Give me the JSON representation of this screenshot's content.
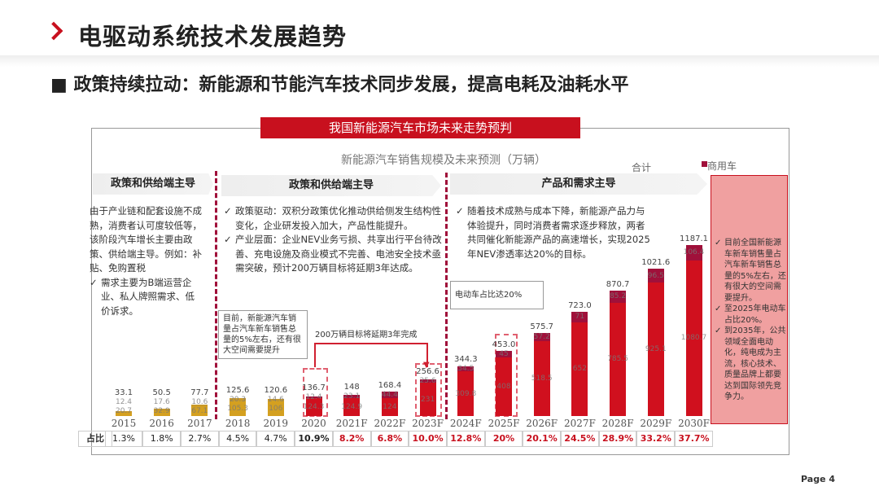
{
  "header": {
    "title": "电驱动系统技术发展趋势",
    "subtitle": "■ 政策持续拉动：新能源和节能汽车技术同步发展，提高电耗及油耗水平"
  },
  "banner": "我国新能源汽车市场未来走势预判",
  "phases": [
    {
      "label": "政策和供给端主导",
      "text": "由于产业链和配套设施不成熟，消费者认可度较低等，该阶段汽车增长主要由政策、供给端主导。例如：补贴、免购置税",
      "bullets": [
        "需求主要为B端运营企业、私人牌照需求、低价诉求。"
      ]
    },
    {
      "label": "政策和供给端主导",
      "bullets": [
        "政策驱动：双积分政策优化推动供给侧发生结构性变化，企业研发投入加大，产品性能提升。",
        "产业层面：企业NEV业务亏损、共享出行平台待改善、充电设施及商业模式不完善、电池安全技术亟需突破，预计200万辆目标将延期3年达成。"
      ]
    },
    {
      "label": "产品和需求主导",
      "bullets": [
        "随着技术成熟与成本下降，新能源产品力与体验提升，同时消费者需求逐步释放，两者共同催化新能源产品的高速增长，实现2025年NEV渗透率达20%的目标。"
      ]
    }
  ],
  "side_note": [
    "目前全国新能源车新车销售量占汽车新车销售总量的5%左右，还有很大的空间需要提升。",
    "至2025年电动车占比20%。",
    "到2035年，公共领域全面电动化，纯电成为主流，核心技术、质量品牌上都要达到国际领先竞争力。"
  ],
  "callouts": {
    "c1": "目前，新能源汽车销量占汽车新车销售总量的5%左右，还有很大空间需要提升",
    "c2": "200万辆目标将延期3年完成",
    "c3": "电动车占比达20%"
  },
  "table": {
    "row_label": "占比"
  },
  "page": "Page  4",
  "colors": {
    "accent": "#c8101e",
    "historic": "#d4a020",
    "commercial": "#a0103a",
    "forecast": "#d0101e"
  },
  "chart_data": {
    "type": "bar",
    "stacked": true,
    "title": "新能源汽车销售规模及未来预测（万辆）",
    "legend": [
      "合计",
      "商用车"
    ],
    "categories": [
      "2015",
      "2016",
      "2017",
      "2018",
      "2019",
      "2020",
      "2021F",
      "2022F",
      "2023F",
      "2024F",
      "2025F",
      "2026F",
      "2027F",
      "2028F",
      "2029F",
      "2030F"
    ],
    "totals": [
      "33.1",
      "50.5",
      "77.7",
      "125.6",
      "120.6",
      "136.7",
      "148",
      "168.4",
      "256.6",
      "344.3",
      "453.0",
      "575.7",
      "723.0",
      "870.7",
      "1021.6",
      "1187.1"
    ],
    "series": [
      {
        "values": [
          20.7,
          32.9,
          67.1,
          105.3,
          106.0,
          124.3,
          124.9,
          124.0,
          231.0,
          309.8,
          408.0,
          518.5,
          652.0,
          785.5,
          925.1,
          1080.7
        ]
      },
      {
        "name": "商用车",
        "values": [
          12.4,
          17.6,
          10.6,
          20.3,
          14.6,
          12.4,
          23.1,
          44.4,
          25.6,
          34.5,
          45.0,
          57.2,
          71.0,
          85.2,
          96.5,
          106.4
        ]
      }
    ],
    "share": [
      "1.3%",
      "1.8%",
      "2.7%",
      "4.5%",
      "4.7%",
      "10.9%",
      "8.2%",
      "6.8%",
      "10.0%",
      "12.8%",
      "20%",
      "20.1%",
      "24.5%",
      "28.9%",
      "33.2%",
      "37.7%"
    ]
  }
}
